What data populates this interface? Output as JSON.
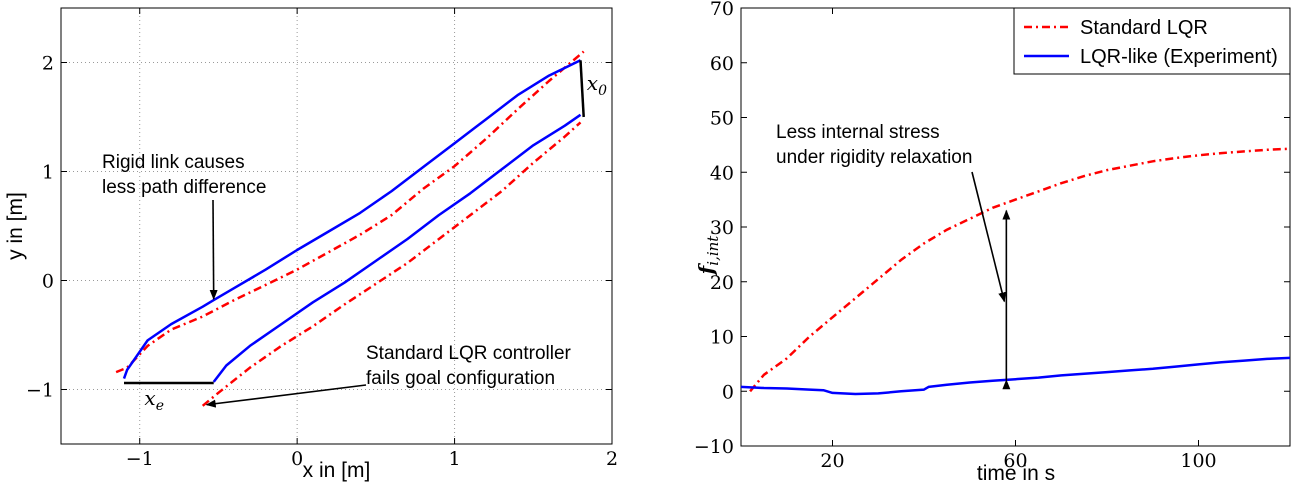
{
  "chart_data": [
    {
      "type": "line",
      "xlabel": "x in [m]",
      "ylabel": "y in [m]",
      "xlim": [
        -1.5,
        2
      ],
      "ylim": [
        -1.5,
        2.5
      ],
      "xticks": [
        -1,
        0,
        1,
        2
      ],
      "yticks": [
        -1,
        0,
        1,
        2
      ],
      "xtick_labels": [
        "−1",
        "0",
        "1",
        "2"
      ],
      "ytick_labels": [
        "−1",
        "0",
        "1",
        "2"
      ],
      "grid": true,
      "series": [
        {
          "style": "dash-dot",
          "color": "#ff0000",
          "x": [
            -1.15,
            -1.08,
            -0.95,
            -0.8,
            -0.6,
            -0.4,
            -0.2,
            0.0,
            0.2,
            0.4,
            0.6,
            0.8,
            1.0,
            1.2,
            1.4,
            1.6,
            1.82
          ],
          "y": [
            -0.84,
            -0.8,
            -0.6,
            -0.45,
            -0.33,
            -0.18,
            -0.04,
            0.1,
            0.26,
            0.42,
            0.6,
            0.84,
            1.05,
            1.3,
            1.57,
            1.83,
            2.1
          ]
        },
        {
          "style": "dash-dot",
          "color": "#ff0000",
          "x": [
            -0.6,
            -0.5,
            -0.3,
            -0.1,
            0.1,
            0.3,
            0.5,
            0.7,
            0.9,
            1.1,
            1.3,
            1.5,
            1.7,
            1.8
          ],
          "y": [
            -1.15,
            -1.03,
            -0.8,
            -0.6,
            -0.42,
            -0.22,
            -0.03,
            0.16,
            0.38,
            0.6,
            0.82,
            1.08,
            1.32,
            1.45
          ]
        },
        {
          "style": "solid",
          "color": "#0000ff",
          "x": [
            -1.1,
            -1.08,
            -0.95,
            -0.8,
            -0.6,
            -0.53,
            -0.4,
            -0.2,
            0.0,
            0.2,
            0.4,
            0.6,
            0.8,
            1.0,
            1.2,
            1.4,
            1.6,
            1.8
          ],
          "y": [
            -0.9,
            -0.82,
            -0.55,
            -0.4,
            -0.24,
            -0.18,
            -0.07,
            0.1,
            0.28,
            0.45,
            0.62,
            0.82,
            1.04,
            1.26,
            1.48,
            1.7,
            1.88,
            2.02
          ]
        },
        {
          "style": "solid",
          "color": "#0000ff",
          "x": [
            -0.53,
            -0.45,
            -0.3,
            -0.1,
            0.1,
            0.3,
            0.5,
            0.7,
            0.9,
            1.1,
            1.3,
            1.5,
            1.7,
            1.8
          ],
          "y": [
            -0.93,
            -0.78,
            -0.6,
            -0.4,
            -0.2,
            -0.02,
            0.18,
            0.38,
            0.6,
            0.8,
            1.02,
            1.24,
            1.42,
            1.52
          ]
        },
        {
          "style": "solid",
          "color": "#000000",
          "x": [
            -1.1,
            -0.53
          ],
          "y": [
            -0.94,
            -0.94
          ]
        },
        {
          "style": "solid",
          "color": "#000000",
          "x": [
            1.8,
            1.82
          ],
          "y": [
            2.02,
            1.5
          ]
        }
      ],
      "annotations": [
        {
          "lines": [
            "Rigid link causes",
            "less path difference"
          ],
          "arrow_to": [
            -0.53,
            -0.17
          ]
        },
        {
          "lines": [
            "Standard LQR controller",
            "fails goal configuration"
          ],
          "arrow_to": [
            -0.6,
            -1.14
          ]
        }
      ],
      "math_labels": [
        {
          "base": "x",
          "sub": "0",
          "at": [
            1.84,
            1.75
          ]
        },
        {
          "base": "x",
          "sub": "e",
          "at": [
            -0.97,
            -1.14
          ]
        }
      ]
    },
    {
      "type": "line",
      "xlabel": "time in s",
      "ylabel": {
        "base": "f",
        "sub": "i,int"
      },
      "xlim": [
        0,
        120
      ],
      "ylim": [
        -10,
        70
      ],
      "xticks": [
        20,
        60,
        100
      ],
      "yticks": [
        -10,
        0,
        10,
        20,
        30,
        40,
        50,
        60,
        70
      ],
      "xtick_labels": [
        "20",
        "60",
        "100"
      ],
      "ytick_labels": [
        "−10",
        "0",
        "10",
        "20",
        "30",
        "40",
        "50",
        "60",
        "70"
      ],
      "grid": false,
      "legend": {
        "position": "top-right",
        "entries": [
          "Standard LQR",
          "LQR-like (Experiment)"
        ]
      },
      "series": [
        {
          "name": "Standard LQR",
          "style": "dash-dot",
          "color": "#ff0000",
          "x": [
            2,
            5,
            10,
            15,
            20,
            25,
            30,
            35,
            40,
            45,
            50,
            55,
            60,
            65,
            70,
            75,
            80,
            85,
            90,
            95,
            100,
            105,
            110,
            115,
            120
          ],
          "y": [
            0,
            3,
            6,
            10,
            13.5,
            17,
            20.5,
            24,
            27,
            29.5,
            31.5,
            33.5,
            35,
            36.5,
            38,
            39.3,
            40.4,
            41.2,
            42,
            42.6,
            43.1,
            43.5,
            43.8,
            44.1,
            44.3
          ]
        },
        {
          "name": "LQR-like (Experiment)",
          "style": "solid",
          "color": "#0000ff",
          "x": [
            0,
            5,
            10,
            15,
            18,
            20,
            25,
            30,
            35,
            40,
            41,
            45,
            50,
            55,
            60,
            65,
            70,
            75,
            80,
            85,
            90,
            95,
            100,
            105,
            110,
            115,
            120
          ],
          "y": [
            0.8,
            0.6,
            0.5,
            0.3,
            0.2,
            -0.3,
            -0.5,
            -0.4,
            0,
            0.3,
            0.8,
            1.2,
            1.6,
            1.9,
            2.2,
            2.5,
            2.9,
            3.2,
            3.5,
            3.8,
            4.1,
            4.5,
            4.9,
            5.3,
            5.6,
            5.9,
            6.1
          ]
        }
      ],
      "annotations": [
        {
          "lines": [
            "Less internal stress",
            "under rigidity relaxation"
          ],
          "arrow_to": [
            58,
            1.8
          ]
        }
      ],
      "double_arrow": {
        "x": 58,
        "y_from": 2.0,
        "y_to": 33.0
      }
    }
  ]
}
